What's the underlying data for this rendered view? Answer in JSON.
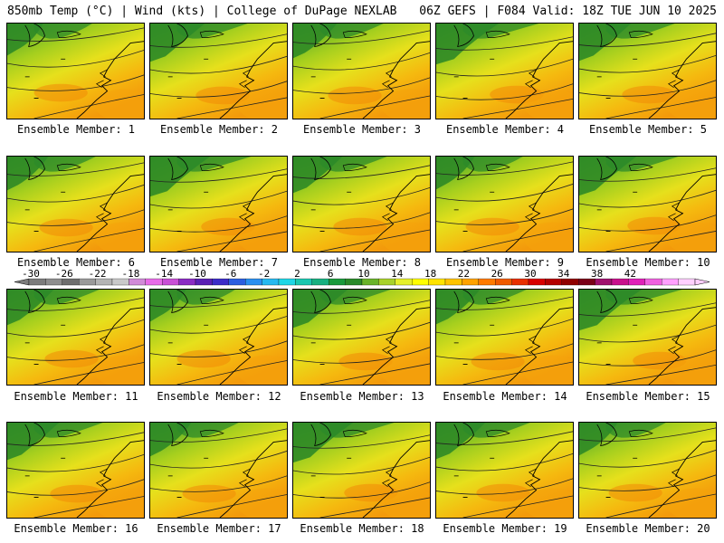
{
  "header": {
    "left": "850mb Temp (°C) | Wind (kts) | College of DuPage NEXLAB",
    "right": "06Z GEFS | F084 Valid: 18Z TUE JUN 10 2025"
  },
  "colorbar": {
    "labels": [
      "-30",
      "-26",
      "-22",
      "-18",
      "-14",
      "-10",
      "-6",
      "-2",
      "2",
      "6",
      "10",
      "14",
      "18",
      "22",
      "26",
      "30",
      "34",
      "38",
      "42"
    ],
    "colors": [
      "#7c7c7c",
      "#8e8e8e",
      "#6e6e6e",
      "#9a9a9a",
      "#b4b4b4",
      "#c9c9c9",
      "#d28bd8",
      "#e86be8",
      "#c94fd6",
      "#8b2bc4",
      "#5a1fb4",
      "#3c2cc8",
      "#2b5ee0",
      "#2a8ff0",
      "#26b9f0",
      "#1fd6e6",
      "#19c8b0",
      "#17b080",
      "#1a9a3c",
      "#2a8a2a",
      "#69b32a",
      "#a8d22a",
      "#e6f02a",
      "#ffff00",
      "#ffe300",
      "#ffc400",
      "#ffa200",
      "#ff7a00",
      "#f05a00",
      "#e83000",
      "#d80000",
      "#b40000",
      "#900000",
      "#7a0018",
      "#a0106e",
      "#c8108c",
      "#e020b8",
      "#f060e0",
      "#ffa0ff",
      "#ffd0ff"
    ]
  },
  "members": [
    {
      "label": "Ensemble Member: 1"
    },
    {
      "label": "Ensemble Member: 2"
    },
    {
      "label": "Ensemble Member: 3"
    },
    {
      "label": "Ensemble Member: 4"
    },
    {
      "label": "Ensemble Member: 5"
    },
    {
      "label": "Ensemble Member: 6"
    },
    {
      "label": "Ensemble Member: 7"
    },
    {
      "label": "Ensemble Member: 8"
    },
    {
      "label": "Ensemble Member: 9"
    },
    {
      "label": "Ensemble Member: 10"
    },
    {
      "label": "Ensemble Member: 11"
    },
    {
      "label": "Ensemble Member: 12"
    },
    {
      "label": "Ensemble Member: 13"
    },
    {
      "label": "Ensemble Member: 14"
    },
    {
      "label": "Ensemble Member: 15"
    },
    {
      "label": "Ensemble Member: 16"
    },
    {
      "label": "Ensemble Member: 17"
    },
    {
      "label": "Ensemble Member: 18"
    },
    {
      "label": "Ensemble Member: 19"
    },
    {
      "label": "Ensemble Member: 20"
    }
  ]
}
